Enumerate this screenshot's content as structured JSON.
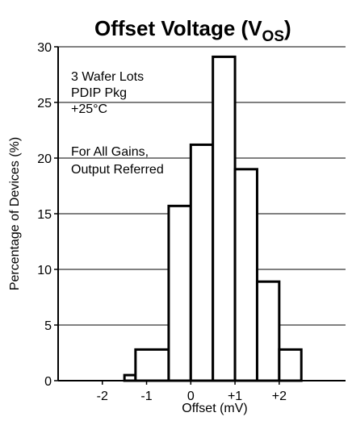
{
  "chart_data": {
    "type": "bar",
    "title_main": "Offset Voltage (V",
    "title_sub": "OS",
    "title_end": ")",
    "xlabel": "Offset (mV)",
    "ylabel": "Percentage of Devices (%)",
    "xlim": [
      -3,
      3.5
    ],
    "ylim": [
      0,
      30
    ],
    "x_ticks": [
      -2,
      -1,
      0,
      1,
      2
    ],
    "x_tick_labels": [
      "-2",
      "-1",
      "0",
      "+1",
      "+2"
    ],
    "y_ticks": [
      0,
      5,
      10,
      15,
      20,
      25,
      30
    ],
    "y_tick_labels": [
      "0",
      "5",
      "10",
      "15",
      "20",
      "25",
      "30"
    ],
    "bin_width": 0.5,
    "bins": [
      {
        "x_start": -1.5,
        "x_end": -1.25,
        "value": 0.5
      },
      {
        "x_start": -1.25,
        "x_end": -0.5,
        "value": 2.8
      },
      {
        "x_start": -0.5,
        "x_end": 0.0,
        "value": 15.7
      },
      {
        "x_start": 0.0,
        "x_end": 0.5,
        "value": 21.2
      },
      {
        "x_start": 0.5,
        "x_end": 1.0,
        "value": 29.1
      },
      {
        "x_start": 1.0,
        "x_end": 1.5,
        "value": 19.0
      },
      {
        "x_start": 1.5,
        "x_end": 2.0,
        "value": 8.9
      },
      {
        "x_start": 2.0,
        "x_end": 2.5,
        "value": 2.8
      }
    ],
    "grid": {
      "y": true,
      "x": false
    },
    "annotations": [
      "3 Wafer Lots",
      "PDIP Pkg",
      "+25°C",
      "For All Gains,",
      "Output Referred"
    ]
  }
}
